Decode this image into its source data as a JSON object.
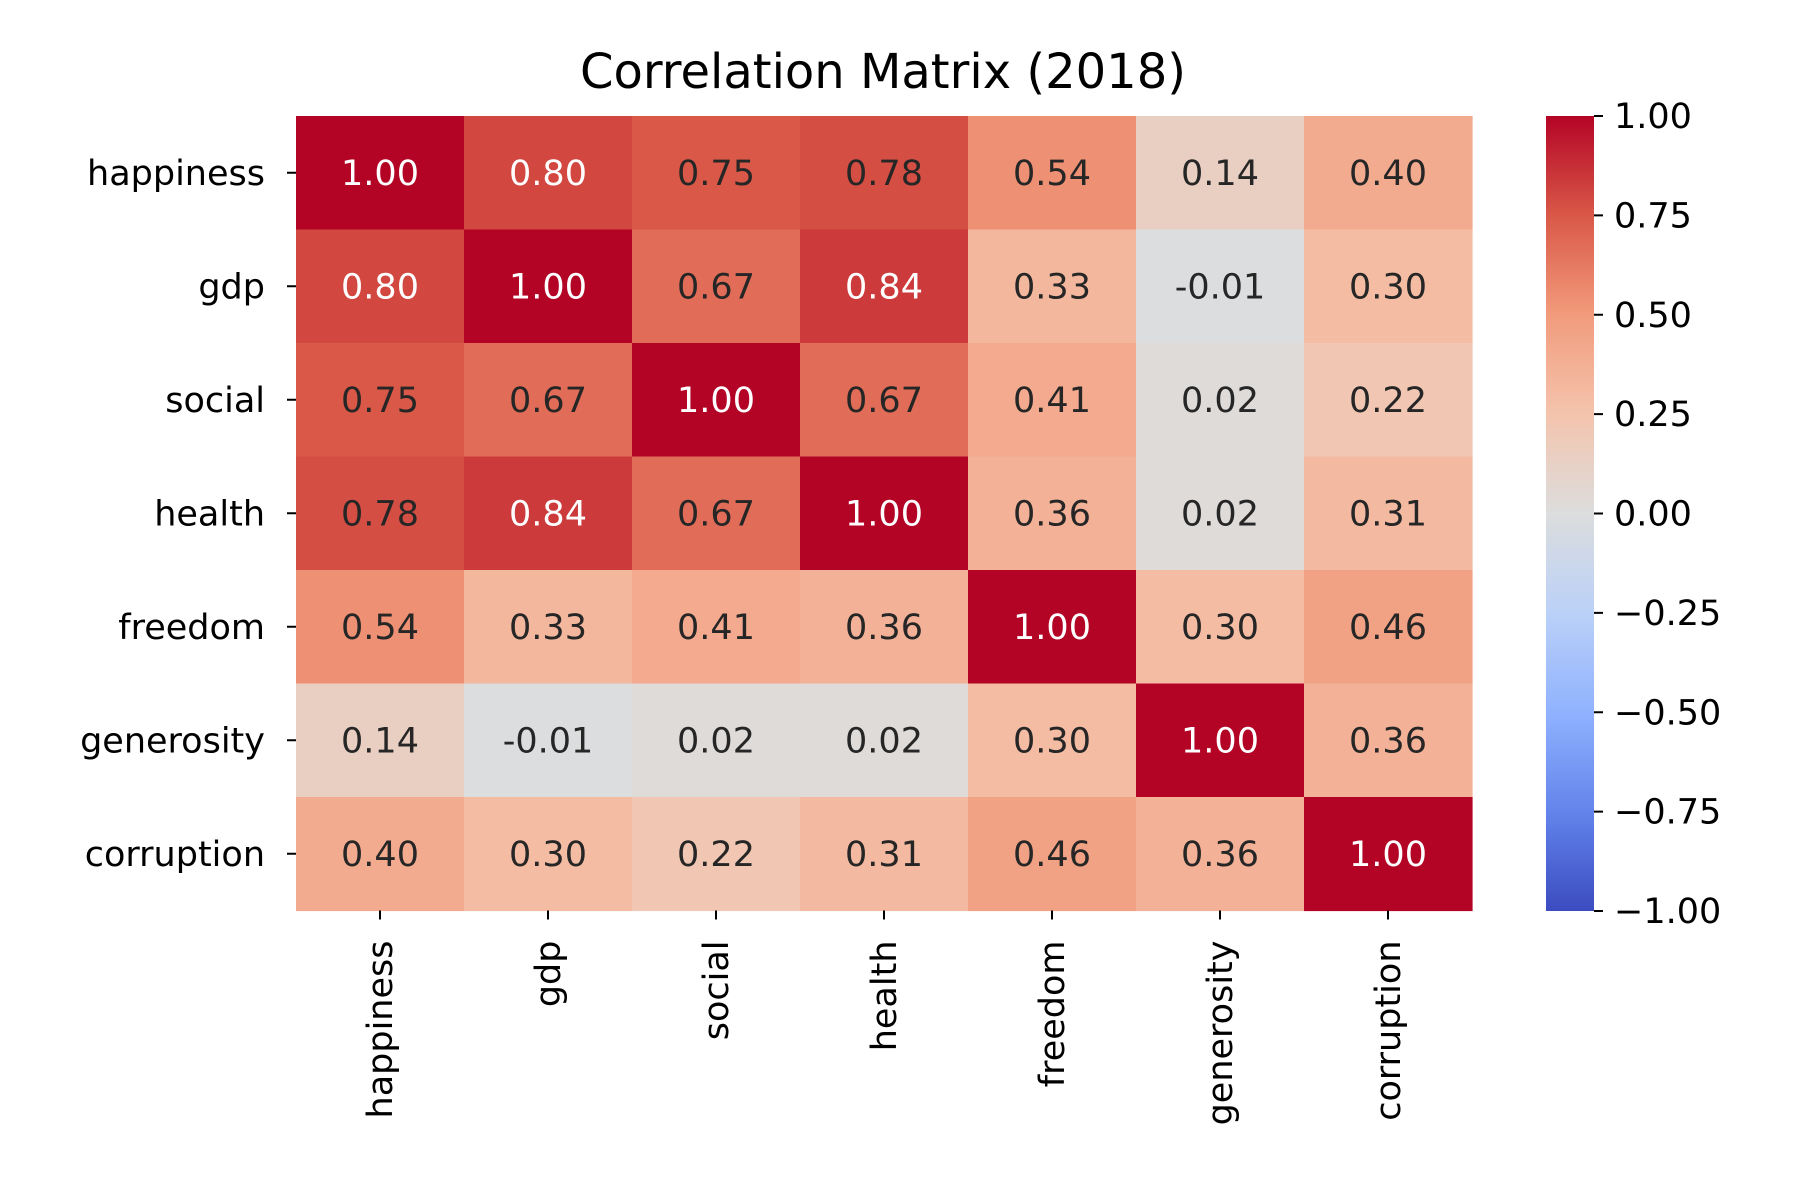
{
  "chart_data": {
    "type": "heatmap",
    "title": "Correlation Matrix (2018)",
    "xlabel": "",
    "ylabel": "",
    "rows": [
      "happiness",
      "gdp",
      "social",
      "health",
      "freedom",
      "generosity",
      "corruption"
    ],
    "columns": [
      "happiness",
      "gdp",
      "social",
      "health",
      "freedom",
      "generosity",
      "corruption"
    ],
    "values": [
      [
        1.0,
        0.8,
        0.75,
        0.78,
        0.54,
        0.14,
        0.4
      ],
      [
        0.8,
        1.0,
        0.67,
        0.84,
        0.33,
        -0.01,
        0.3
      ],
      [
        0.75,
        0.67,
        1.0,
        0.67,
        0.41,
        0.02,
        0.22
      ],
      [
        0.78,
        0.84,
        0.67,
        1.0,
        0.36,
        0.02,
        0.31
      ],
      [
        0.54,
        0.33,
        0.41,
        0.36,
        1.0,
        0.3,
        0.46
      ],
      [
        0.14,
        -0.01,
        0.02,
        0.02,
        0.3,
        1.0,
        0.36
      ],
      [
        0.4,
        0.3,
        0.22,
        0.31,
        0.46,
        0.36,
        1.0
      ]
    ],
    "value_labels": [
      [
        "1.00",
        "0.80",
        "0.75",
        "0.78",
        "0.54",
        "0.14",
        "0.40"
      ],
      [
        "0.80",
        "1.00",
        "0.67",
        "0.84",
        "0.33",
        "-0.01",
        "0.30"
      ],
      [
        "0.75",
        "0.67",
        "1.00",
        "0.67",
        "0.41",
        "0.02",
        "0.22"
      ],
      [
        "0.78",
        "0.84",
        "0.67",
        "1.00",
        "0.36",
        "0.02",
        "0.31"
      ],
      [
        "0.54",
        "0.33",
        "0.41",
        "0.36",
        "1.00",
        "0.30",
        "0.46"
      ],
      [
        "0.14",
        "-0.01",
        "0.02",
        "0.02",
        "0.30",
        "1.00",
        "0.36"
      ],
      [
        "0.40",
        "0.30",
        "0.22",
        "0.31",
        "0.46",
        "0.36",
        "1.00"
      ]
    ],
    "colormap": "coolwarm",
    "vmin": -1.0,
    "vmax": 1.0,
    "colorbar_ticks": [
      1.0,
      0.75,
      0.5,
      0.25,
      0.0,
      -0.25,
      -0.5,
      -0.75,
      -1.0
    ],
    "colorbar_tick_labels": [
      "1.00",
      "0.75",
      "0.50",
      "0.25",
      "0.00",
      "−0.25",
      "−0.50",
      "−0.75",
      "−1.00"
    ],
    "annotation_dark_text_color": "#262626",
    "annotation_light_text_color": "#ffffff"
  }
}
